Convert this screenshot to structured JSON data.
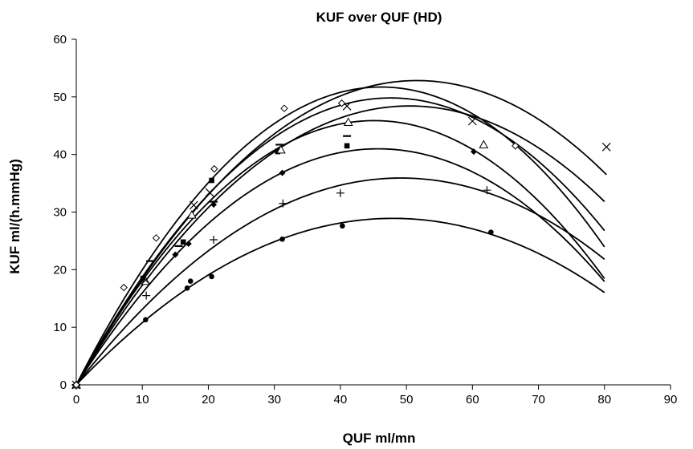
{
  "chart_data": {
    "type": "scatter",
    "title": "KUF over QUF (HD)",
    "xlabel": "QUF ml/mn",
    "ylabel": "KUF ml/(h.mmHg)",
    "xlim": [
      0,
      90
    ],
    "ylim": [
      0,
      60
    ],
    "x_ticks": [
      0,
      10,
      20,
      30,
      40,
      50,
      60,
      70,
      80,
      90
    ],
    "y_ticks": [
      0,
      10,
      20,
      30,
      40,
      50,
      60
    ],
    "grid": false,
    "legend": "none",
    "line_color": "#000000",
    "series": [
      {
        "marker": "circle",
        "points": [
          [
            0,
            0
          ],
          [
            10.5,
            11.3
          ],
          [
            16.8,
            16.8
          ],
          [
            17.3,
            18.0
          ],
          [
            20.5,
            18.8
          ],
          [
            31.2,
            25.3
          ],
          [
            40.3,
            27.6
          ],
          [
            62.8,
            26.5
          ]
        ],
        "fit": [
          -0.01256,
          1.20512,
          0
        ]
      },
      {
        "marker": "plus",
        "points": [
          [
            0,
            0
          ],
          [
            10.6,
            15.5
          ],
          [
            20.8,
            25.2
          ],
          [
            31.3,
            31.5
          ],
          [
            40.0,
            33.3
          ],
          [
            62.2,
            33.8
          ]
        ],
        "fit": [
          -0.01485,
          1.46054,
          0
        ]
      },
      {
        "marker": "diamond-filled",
        "points": [
          [
            0,
            0
          ],
          [
            15.0,
            22.6
          ],
          [
            17.0,
            24.5
          ],
          [
            20.8,
            31.3
          ],
          [
            31.2,
            36.8
          ],
          [
            60.2,
            40.5
          ]
        ],
        "fit": [
          -0.01961,
          1.79298,
          0
        ]
      },
      {
        "marker": "square-filled",
        "points": [
          [
            0,
            0
          ],
          [
            10.1,
            18.5
          ],
          [
            16.2,
            24.8
          ],
          [
            20.5,
            35.5
          ],
          [
            30.5,
            40.5
          ],
          [
            41.0,
            41.5
          ]
        ],
        "fit": [
          -0.02254,
          2.03381,
          0
        ]
      },
      {
        "marker": "dash",
        "points": [
          [
            0,
            0
          ],
          [
            11.2,
            21.5
          ],
          [
            15.5,
            24.1
          ],
          [
            20.8,
            31.8
          ],
          [
            30.8,
            41.7
          ],
          [
            41.0,
            43.2
          ]
        ],
        "fit": [
          -0.02197,
          2.09231,
          0
        ]
      },
      {
        "marker": "triangle",
        "points": [
          [
            0,
            0
          ],
          [
            10.5,
            18.0
          ],
          [
            17.5,
            29.5
          ],
          [
            31.0,
            40.8
          ],
          [
            41.2,
            45.6
          ],
          [
            61.7,
            41.7
          ]
        ],
        "fit": [
          -0.01902,
          1.91935,
          0
        ]
      },
      {
        "marker": "x",
        "points": [
          [
            0,
            0
          ],
          [
            10.5,
            18.2
          ],
          [
            17.8,
            31.2
          ],
          [
            20.2,
            33.4
          ],
          [
            41.0,
            48.4
          ],
          [
            60.0,
            45.8
          ],
          [
            80.3,
            41.3
          ]
        ],
        "fit": [
          -0.01984,
          2.04762,
          0
        ]
      },
      {
        "marker": "diamond-open",
        "points": [
          [
            0,
            0
          ],
          [
            7.2,
            16.9
          ],
          [
            12.1,
            25.5
          ],
          [
            20.9,
            37.5
          ],
          [
            31.5,
            48.0
          ],
          [
            40.2,
            48.9
          ],
          [
            66.5,
            41.5
          ]
        ],
        "fit": [
          -0.02426,
          2.24012,
          0
        ]
      }
    ]
  }
}
